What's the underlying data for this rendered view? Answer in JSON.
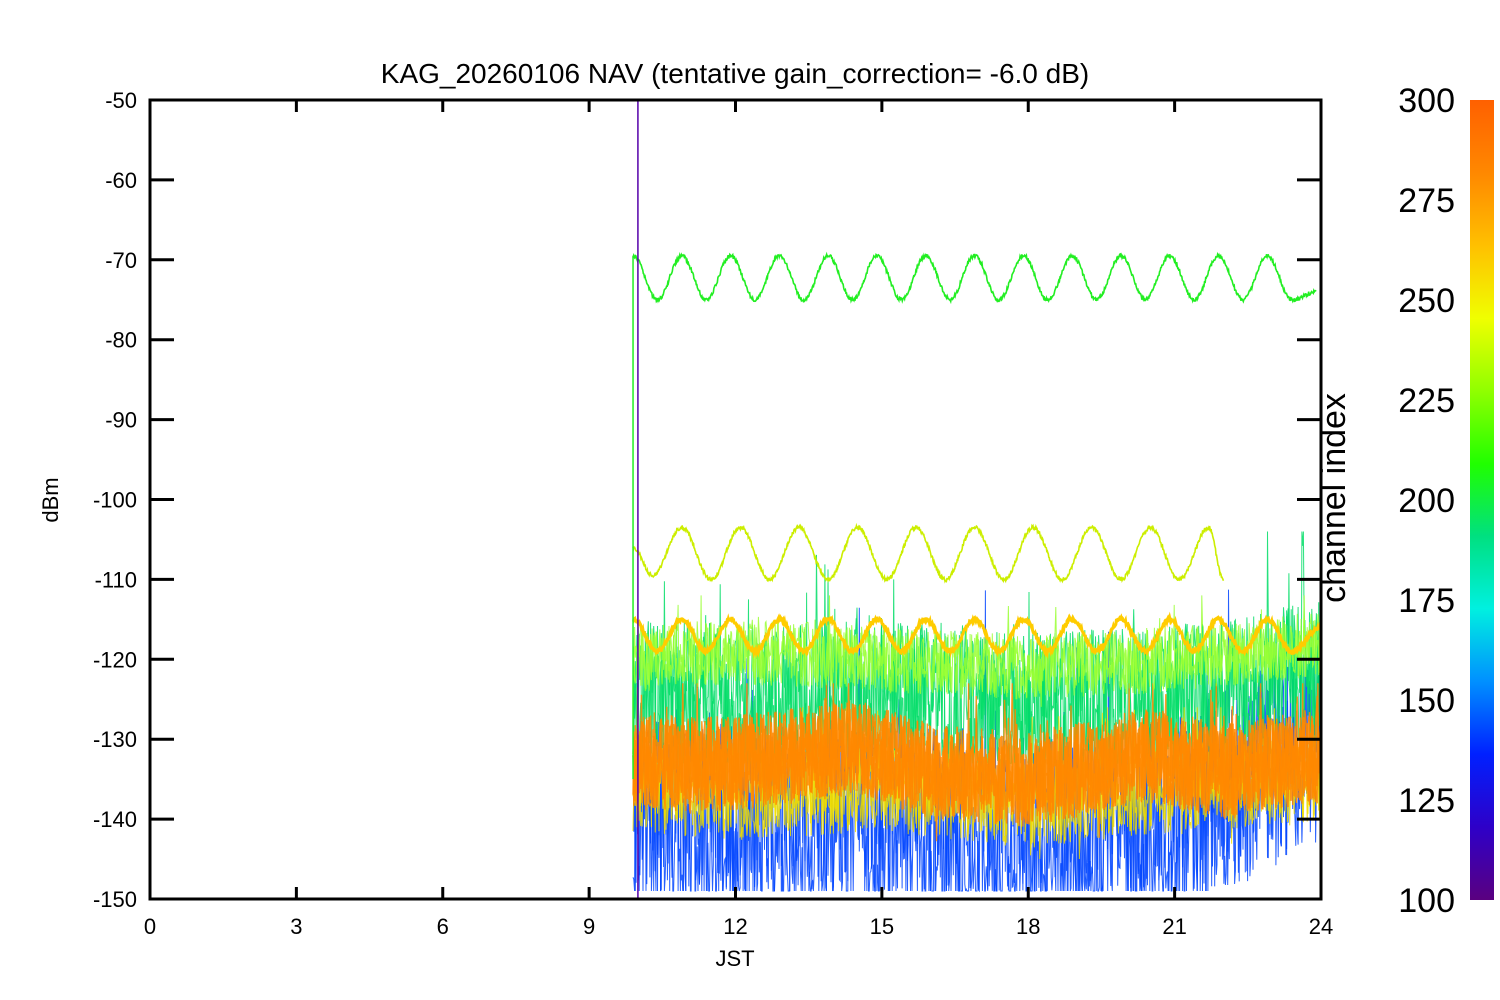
{
  "chart_data": {
    "type": "line",
    "title": "KAG_20260106 NAV (tentative gain_correction= -6.0 dB)",
    "xlabel": "JST",
    "ylabel": "dBm",
    "xlim": [
      0,
      24
    ],
    "ylim": [
      -150,
      -50
    ],
    "xticks": [
      "0",
      "3",
      "6",
      "9",
      "12",
      "15",
      "18",
      "21",
      "24"
    ],
    "yticks": [
      "-50",
      "-60",
      "-70",
      "-80",
      "-90",
      "-100",
      "-110",
      "-120",
      "-130",
      "-140",
      "-150"
    ],
    "grid": false,
    "colorbar": {
      "label": "channel index",
      "ticks": [
        "300",
        "275",
        "250",
        "225",
        "200",
        "175",
        "150",
        "125",
        "100"
      ],
      "range": [
        100,
        300
      ],
      "colormap": "rainbow",
      "colors": [
        "#5a0080",
        "#2e00c8",
        "#0020ff",
        "#0090ff",
        "#00f0e0",
        "#00e080",
        "#20ff00",
        "#90ff00",
        "#f0ff00",
        "#ffc000",
        "#ff8800",
        "#ff6000"
      ]
    },
    "data_start_hour": 9.9,
    "series": [
      {
        "color": "#22ee22",
        "approx_range_dbm": [
          -75,
          -69.5
        ],
        "period_hours": 1.0,
        "x": [
          9.9,
          10.4,
          10.9,
          11.4,
          11.9,
          12.4,
          12.9,
          13.4,
          13.9,
          14.4,
          14.9,
          15.4,
          15.9,
          16.4,
          16.9,
          17.4,
          17.9,
          18.4,
          18.9,
          19.4,
          19.9,
          20.4,
          20.9,
          21.4,
          21.9,
          22.4,
          22.9,
          23.4,
          23.9
        ],
        "y": [
          -69.5,
          -75,
          -69.5,
          -75,
          -69.5,
          -75,
          -69.5,
          -75,
          -69.5,
          -75,
          -69.5,
          -75,
          -69.5,
          -75,
          -69.5,
          -75,
          -69.5,
          -75,
          -69.5,
          -75,
          -69.5,
          -75,
          -69.5,
          -75,
          -69.5,
          -75,
          -69.5,
          -75,
          -74
        ]
      },
      {
        "color": "#ccee00",
        "approx_range_dbm": [
          -110,
          -103
        ],
        "period_hours": 1.2,
        "x": [
          9.9,
          10.3,
          10.9,
          11.5,
          12.1,
          12.7,
          13.3,
          13.9,
          14.5,
          15.1,
          15.7,
          16.3,
          16.9,
          17.5,
          18.1,
          18.7,
          19.3,
          19.9,
          20.5,
          21.1,
          21.7,
          22.0
        ],
        "y": [
          -106,
          -109.5,
          -103.5,
          -110,
          -103.5,
          -110,
          -103.5,
          -110,
          -103.5,
          -110,
          -103.5,
          -110,
          -103.5,
          -110,
          -103.5,
          -110,
          -103.5,
          -110,
          -103.5,
          -110,
          -103.5,
          -110
        ]
      },
      {
        "color": "#ffcc00",
        "approx_range_dbm": [
          -119,
          -115
        ],
        "period_hours": 1.0,
        "x": [
          9.9,
          10.4,
          10.9,
          11.4,
          11.9,
          12.4,
          12.9,
          13.4,
          13.9,
          14.4,
          14.9,
          15.4,
          15.9,
          16.4,
          16.9,
          17.4,
          17.9,
          18.4,
          18.9,
          19.4,
          19.9,
          20.4,
          20.9,
          21.4,
          21.9,
          22.4,
          22.9,
          23.4,
          24.0
        ],
        "y": [
          -115,
          -119,
          -115,
          -119,
          -115,
          -119,
          -115,
          -119,
          -115,
          -119,
          -115,
          -119,
          -115,
          -119,
          -115,
          -119,
          -115,
          -119,
          -115,
          -119,
          -115,
          -119,
          -115,
          -119,
          -115,
          -119,
          -115,
          -119,
          -116
        ]
      },
      {
        "color": "#99ff33",
        "approx_range_dbm": [
          -125,
          -114
        ],
        "x": [
          9.9,
          12.0,
          15.0,
          18.0,
          21.0,
          24.0
        ],
        "y": [
          -120,
          -119,
          -120,
          -121,
          -120,
          -118
        ]
      },
      {
        "color": "#00dd66",
        "approx_range_dbm": [
          -131,
          -106
        ],
        "x": [
          9.9,
          12.0,
          15.0,
          18.0,
          21.0,
          24.0
        ],
        "y": [
          -124,
          -125,
          -124,
          -126,
          -125,
          -122
        ]
      },
      {
        "color": "#ff8800",
        "approx_range_dbm": [
          -141,
          -125
        ],
        "x": [
          9.9,
          12.0,
          14.5,
          16.0,
          18.0,
          20.5,
          22.0,
          24.0
        ],
        "y": [
          -133,
          -133,
          -131,
          -134,
          -135,
          -132,
          -134,
          -132
        ]
      },
      {
        "color": "#eedd00",
        "approx_range_dbm": [
          -143,
          -128
        ],
        "x": [
          9.9,
          12.0,
          15.0,
          18.0,
          21.0,
          24.0
        ],
        "y": [
          -136,
          -137,
          -136,
          -138,
          -136,
          -135
        ]
      },
      {
        "color": "#0044ff",
        "approx_range_dbm": [
          -147,
          -113
        ],
        "x": [
          9.9,
          12.0,
          15.0,
          18.0,
          21.0,
          24.0
        ],
        "y": [
          -139,
          -141,
          -140,
          -142,
          -140,
          -130
        ]
      }
    ],
    "spike": {
      "color": "#5500aa",
      "x": 10.0,
      "y": [
        -150,
        -50
      ]
    }
  }
}
